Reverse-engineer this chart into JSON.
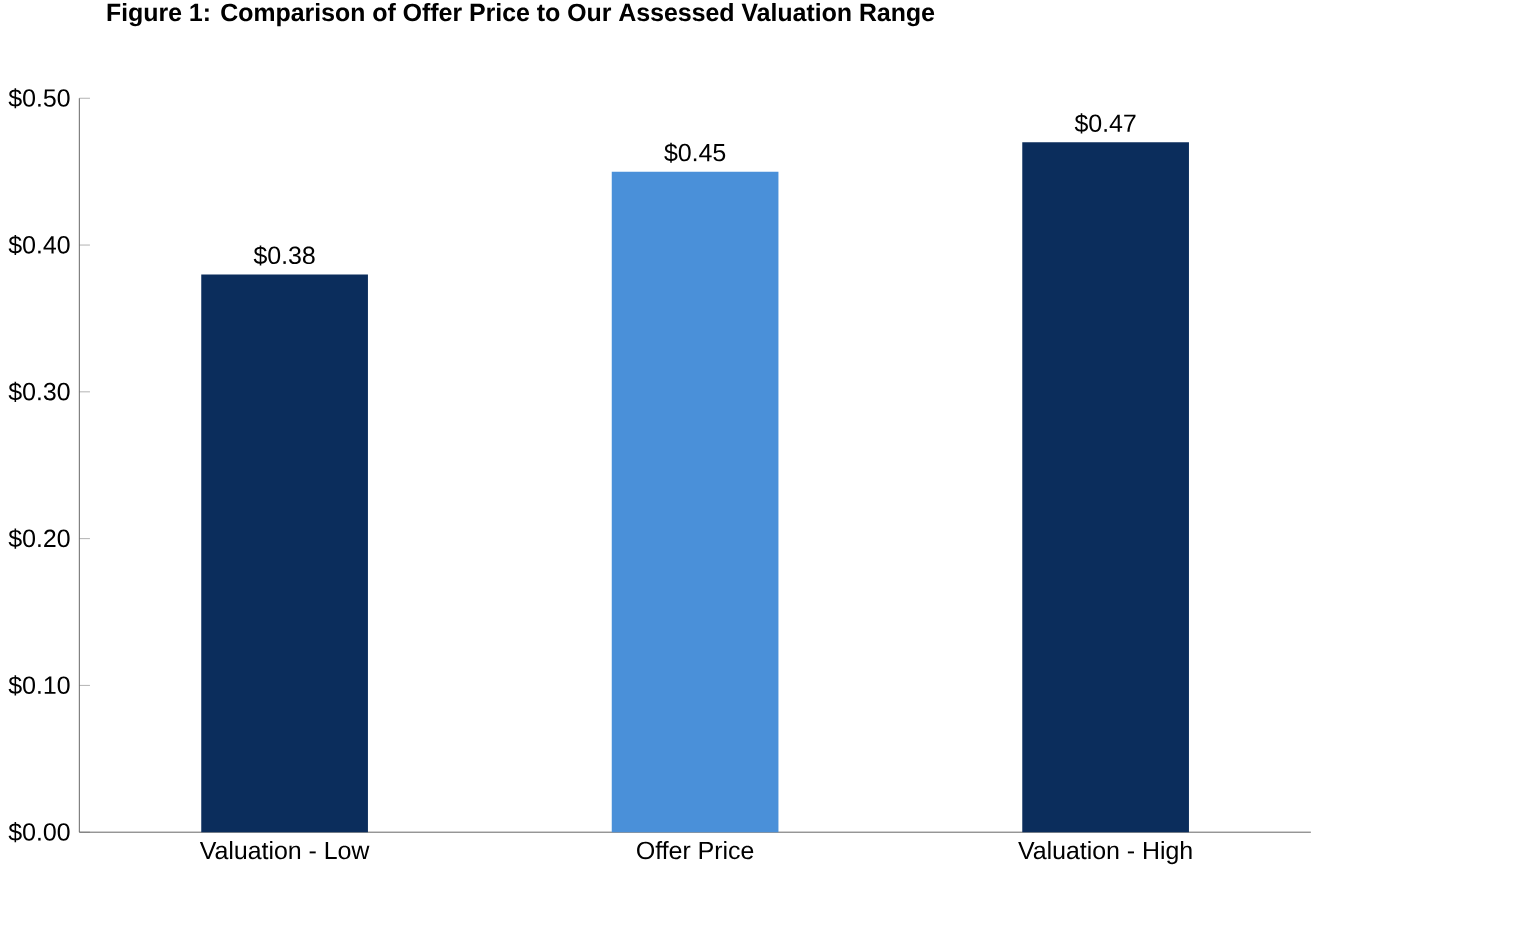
{
  "chart_data": {
    "type": "bar",
    "title": "Figure 1: Comparison of Offer Price to Our Assessed Valuation Range",
    "categories": [
      "Valuation - Low",
      "Offer Price",
      "Valuation - High"
    ],
    "values": [
      0.38,
      0.45,
      0.47
    ],
    "value_labels": [
      "$0.38",
      "$0.45",
      "$0.47"
    ],
    "colors": [
      "#0b2d5c",
      "#4a90d9",
      "#0b2d5c"
    ],
    "ylim": [
      0,
      0.5
    ],
    "yticks": [
      {
        "value": 0,
        "label": "$0.00"
      },
      {
        "value": 0.1,
        "label": "$0.10"
      },
      {
        "value": 0.2,
        "label": "$0.20"
      },
      {
        "value": 0.3,
        "label": "$0.30"
      },
      {
        "value": 0.4,
        "label": "$0.40"
      },
      {
        "value": 0.5,
        "label": "$0.50"
      }
    ],
    "grid": false
  }
}
